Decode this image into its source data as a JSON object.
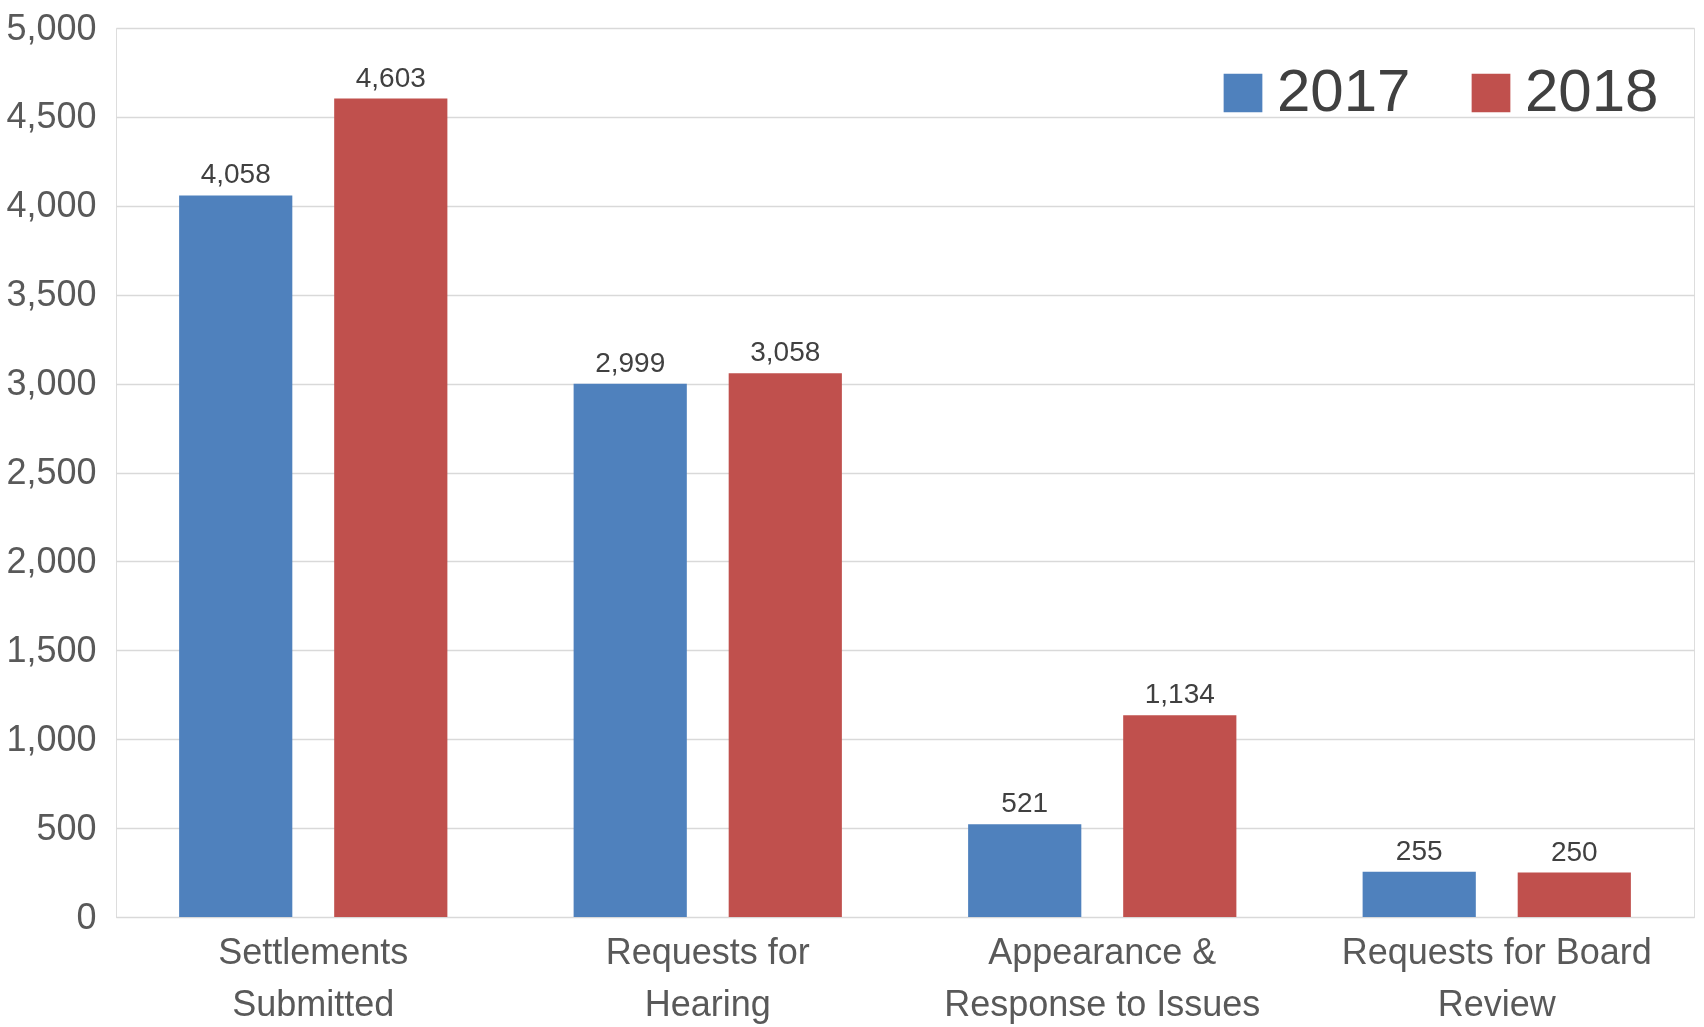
{
  "chart_data": {
    "type": "bar",
    "categories": [
      "Settlements Submitted",
      "Requests for Hearing",
      "Appearance & Response to Issues",
      "Requests for Board Review"
    ],
    "series": [
      {
        "name": "2017",
        "color": "#4f81bd",
        "values": [
          4058,
          2999,
          521,
          255
        ],
        "value_labels": [
          "4,058",
          "2,999",
          "521",
          "255"
        ]
      },
      {
        "name": "2018",
        "color": "#c0504d",
        "values": [
          4603,
          3058,
          1134,
          250
        ],
        "value_labels": [
          "4,603",
          "3,058",
          "1,134",
          "250"
        ]
      }
    ],
    "ylim": [
      0,
      5000
    ],
    "yticks": [
      {
        "value": 0,
        "label": "0"
      },
      {
        "value": 500,
        "label": "500"
      },
      {
        "value": 1000,
        "label": "1,000"
      },
      {
        "value": 1500,
        "label": "1,500"
      },
      {
        "value": 2000,
        "label": "2,000"
      },
      {
        "value": 2500,
        "label": "2,500"
      },
      {
        "value": 3000,
        "label": "3,000"
      },
      {
        "value": 3500,
        "label": "3,500"
      },
      {
        "value": 4000,
        "label": "4,000"
      },
      {
        "value": 4500,
        "label": "4,500"
      },
      {
        "value": 5000,
        "label": "5,000"
      }
    ],
    "grid": "y",
    "legend": "top right"
  }
}
